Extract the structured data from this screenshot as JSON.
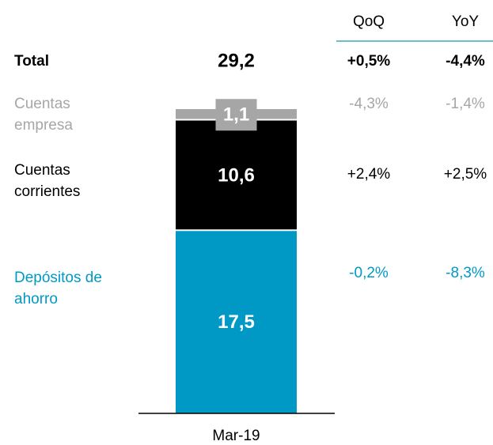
{
  "chart_data": {
    "type": "stacked_bar",
    "categories": [
      "Mar-19"
    ],
    "ylim": [
      0,
      29.2
    ],
    "columns": [
      "QoQ",
      "YoY"
    ],
    "total": {
      "name": "Total",
      "value": 29.2,
      "value_label": "29,2",
      "qoq": "+0,5%",
      "yoy": "-4,4%"
    },
    "series": [
      {
        "name": "Depósitos de ahorro",
        "color": "#0099c6",
        "values": [
          17.5
        ],
        "value_labels": [
          "17,5"
        ],
        "qoq": "-0,2%",
        "yoy": "-8,3%"
      },
      {
        "name": "Cuentas corrientes",
        "color": "#000000",
        "values": [
          10.6
        ],
        "value_labels": [
          "10,6"
        ],
        "qoq": "+2,4%",
        "yoy": "+2,5%"
      },
      {
        "name": "Cuentas empresa",
        "color": "#a6a6a6",
        "values": [
          1.1
        ],
        "value_labels": [
          "1,1"
        ],
        "qoq": "-4,3%",
        "yoy": "-1,4%"
      }
    ]
  }
}
